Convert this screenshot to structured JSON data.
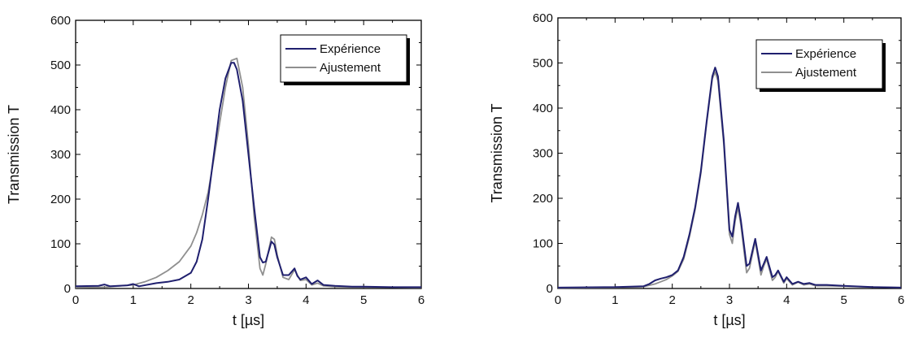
{
  "chart_data": [
    {
      "type": "line",
      "xlabel": "t [µs]",
      "ylabel": "Transmission T",
      "xlim": [
        0,
        6
      ],
      "ylim": [
        0,
        600
      ],
      "xticks": [
        "0",
        "1",
        "2",
        "3",
        "4",
        "5",
        "6"
      ],
      "yticks": [
        "0",
        "100",
        "200",
        "300",
        "400",
        "500",
        "600"
      ],
      "legend_position": "top-right",
      "grid": false,
      "series": [
        {
          "name": "Expérience",
          "color": "#1f1f6e",
          "x": [
            0,
            0.4,
            0.5,
            0.6,
            0.9,
            1.0,
            1.1,
            1.4,
            1.6,
            1.8,
            2.0,
            2.1,
            2.2,
            2.3,
            2.4,
            2.5,
            2.6,
            2.7,
            2.75,
            2.8,
            2.9,
            3.0,
            3.1,
            3.2,
            3.25,
            3.3,
            3.4,
            3.45,
            3.5,
            3.6,
            3.7,
            3.8,
            3.85,
            3.9,
            4.0,
            4.1,
            4.2,
            4.3,
            4.5,
            4.8,
            5.0,
            5.5,
            6.0
          ],
          "y": [
            5,
            6,
            9,
            5,
            7,
            10,
            5,
            12,
            15,
            20,
            35,
            60,
            110,
            200,
            300,
            400,
            470,
            505,
            505,
            490,
            420,
            300,
            180,
            70,
            58,
            60,
            105,
            98,
            70,
            30,
            30,
            45,
            28,
            20,
            25,
            10,
            18,
            8,
            6,
            4,
            4,
            3,
            3
          ]
        },
        {
          "name": "Ajustement",
          "color": "#8f8f8f",
          "x": [
            0,
            0.5,
            1.0,
            1.2,
            1.4,
            1.6,
            1.8,
            2.0,
            2.1,
            2.2,
            2.3,
            2.4,
            2.5,
            2.6,
            2.7,
            2.8,
            2.9,
            3.0,
            3.1,
            3.2,
            3.25,
            3.3,
            3.4,
            3.45,
            3.5,
            3.6,
            3.7,
            3.8,
            3.85,
            3.9,
            4.0,
            4.1,
            4.2,
            4.3,
            4.5,
            5.0,
            6.0
          ],
          "y": [
            2,
            3,
            8,
            15,
            25,
            40,
            60,
            95,
            125,
            165,
            215,
            290,
            370,
            450,
            510,
            515,
            450,
            320,
            160,
            45,
            30,
            55,
            115,
            110,
            75,
            25,
            20,
            42,
            30,
            18,
            20,
            8,
            12,
            6,
            4,
            3,
            2
          ]
        }
      ]
    },
    {
      "type": "line",
      "xlabel": "t [µs]",
      "ylabel": "Transmission T",
      "xlim": [
        0,
        6
      ],
      "ylim": [
        0,
        600
      ],
      "xticks": [
        "0",
        "1",
        "2",
        "3",
        "4",
        "5",
        "6"
      ],
      "yticks": [
        "0",
        "100",
        "200",
        "300",
        "400",
        "500",
        "600"
      ],
      "legend_position": "top-right",
      "grid": false,
      "series": [
        {
          "name": "Expérience",
          "color": "#1f1f6e",
          "x": [
            0,
            1.0,
            1.5,
            1.6,
            1.7,
            1.8,
            1.9,
            2.0,
            2.1,
            2.2,
            2.3,
            2.4,
            2.5,
            2.6,
            2.7,
            2.75,
            2.8,
            2.9,
            3.0,
            3.05,
            3.1,
            3.15,
            3.2,
            3.3,
            3.35,
            3.45,
            3.55,
            3.6,
            3.65,
            3.75,
            3.8,
            3.85,
            3.95,
            4.0,
            4.1,
            4.2,
            4.3,
            4.4,
            4.5,
            4.7,
            5.0,
            5.5,
            6.0
          ],
          "y": [
            2,
            3,
            5,
            10,
            18,
            22,
            25,
            30,
            40,
            70,
            120,
            180,
            260,
            370,
            470,
            490,
            470,
            330,
            130,
            115,
            160,
            190,
            150,
            50,
            55,
            110,
            40,
            55,
            70,
            25,
            30,
            40,
            15,
            25,
            10,
            15,
            10,
            12,
            8,
            8,
            6,
            3,
            2
          ]
        },
        {
          "name": "Ajustement",
          "color": "#8f8f8f",
          "x": [
            0,
            1.0,
            1.5,
            1.7,
            1.8,
            1.9,
            2.0,
            2.1,
            2.2,
            2.3,
            2.4,
            2.5,
            2.6,
            2.7,
            2.75,
            2.8,
            2.9,
            3.0,
            3.05,
            3.1,
            3.15,
            3.2,
            3.3,
            3.35,
            3.45,
            3.55,
            3.6,
            3.65,
            3.75,
            3.8,
            3.85,
            3.95,
            4.0,
            4.1,
            4.2,
            4.3,
            4.4,
            4.5,
            4.7,
            5.0,
            5.5,
            6.0
          ],
          "y": [
            1,
            2,
            4,
            10,
            15,
            20,
            28,
            38,
            65,
            115,
            175,
            255,
            365,
            465,
            480,
            460,
            320,
            120,
            100,
            150,
            180,
            140,
            35,
            45,
            105,
            30,
            50,
            65,
            18,
            25,
            38,
            12,
            22,
            8,
            14,
            8,
            10,
            6,
            6,
            5,
            3,
            2
          ]
        }
      ]
    }
  ]
}
